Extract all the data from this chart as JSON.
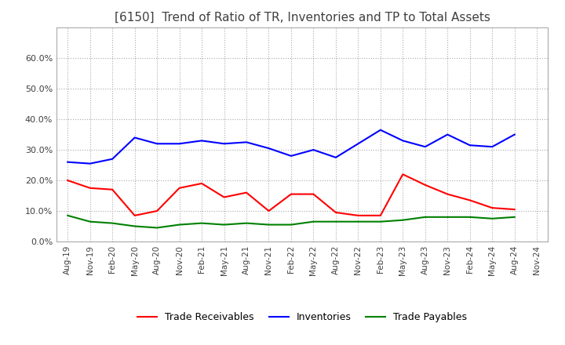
{
  "title": "[6150]  Trend of Ratio of TR, Inventories and TP to Total Assets",
  "title_fontsize": 11,
  "ylim": [
    0.0,
    0.7
  ],
  "yticks": [
    0.0,
    0.1,
    0.2,
    0.3,
    0.4,
    0.5,
    0.6
  ],
  "background_color": "#ffffff",
  "grid_color": "#aaaaaa",
  "dates": [
    "Aug-19",
    "Nov-19",
    "Feb-20",
    "May-20",
    "Aug-20",
    "Nov-20",
    "Feb-21",
    "May-21",
    "Aug-21",
    "Nov-21",
    "Feb-22",
    "May-22",
    "Aug-22",
    "Nov-22",
    "Feb-23",
    "May-23",
    "Aug-23",
    "Nov-23",
    "Feb-24",
    "May-24",
    "Aug-24",
    "Nov-24"
  ],
  "trade_receivables": [
    0.2,
    0.175,
    0.17,
    0.085,
    0.1,
    0.175,
    0.19,
    0.145,
    0.16,
    0.1,
    0.155,
    0.155,
    0.095,
    0.085,
    0.085,
    0.22,
    0.185,
    0.155,
    0.135,
    0.11,
    0.105,
    null
  ],
  "inventories": [
    0.26,
    0.255,
    0.27,
    0.34,
    0.32,
    0.32,
    0.33,
    0.32,
    0.325,
    0.305,
    0.28,
    0.3,
    0.275,
    0.32,
    0.365,
    0.33,
    0.31,
    0.35,
    0.315,
    0.31,
    0.35,
    null
  ],
  "trade_payables": [
    0.085,
    0.065,
    0.06,
    0.05,
    0.045,
    0.055,
    0.06,
    0.055,
    0.06,
    0.055,
    0.055,
    0.065,
    0.065,
    0.065,
    0.065,
    0.07,
    0.08,
    0.08,
    0.08,
    0.075,
    0.08,
    null
  ],
  "tr_color": "#ff0000",
  "inv_color": "#0000ff",
  "tp_color": "#008000",
  "line_width": 1.5,
  "legend_labels": [
    "Trade Receivables",
    "Inventories",
    "Trade Payables"
  ]
}
